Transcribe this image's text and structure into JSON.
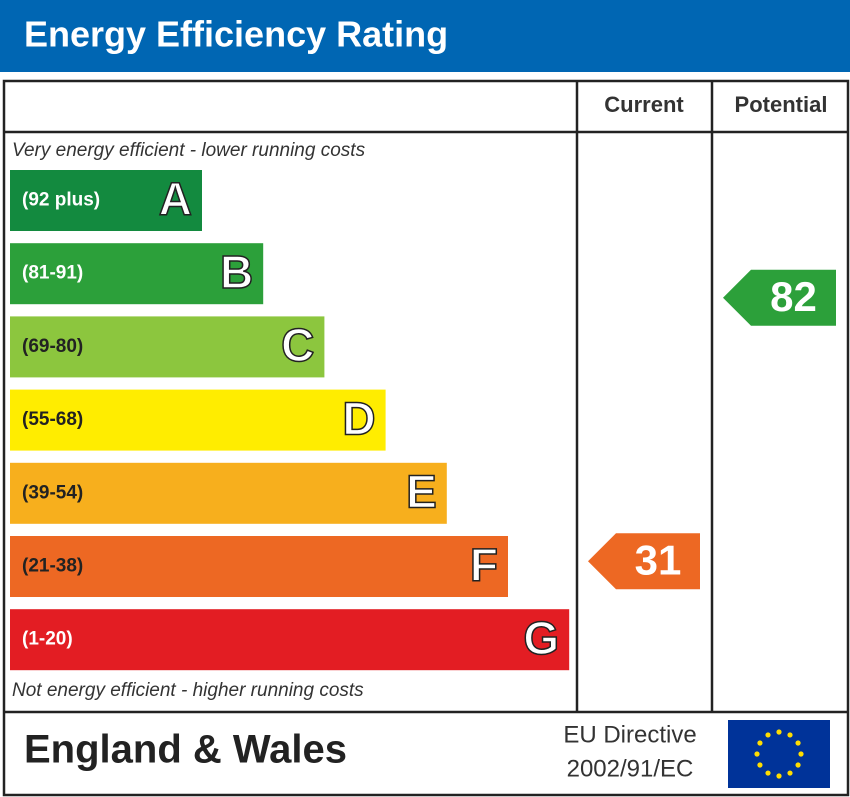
{
  "header": {
    "title": "Energy Efficiency Rating"
  },
  "columns": {
    "current": "Current",
    "potential": "Potential"
  },
  "top_note": "Very energy efficient - lower running costs",
  "bottom_note": "Not energy efficient - higher running costs",
  "bands": [
    {
      "range": "(92 plus)",
      "letter": "A",
      "color": "#138a3f"
    },
    {
      "range": "(81-91)",
      "letter": "B",
      "color": "#2ca03a"
    },
    {
      "range": "(69-80)",
      "letter": "C",
      "color": "#8cc63e"
    },
    {
      "range": "(55-68)",
      "letter": "D",
      "color": "#ffed00"
    },
    {
      "range": "(39-54)",
      "letter": "E",
      "color": "#f7af1d"
    },
    {
      "range": "(21-38)",
      "letter": "F",
      "color": "#ed6823"
    },
    {
      "range": "(1-20)",
      "letter": "G",
      "color": "#e31d23"
    }
  ],
  "current": {
    "value": 31,
    "color": "#ed6823"
  },
  "potential": {
    "value": 82,
    "color": "#2ca03a"
  },
  "footer": {
    "region": "England & Wales",
    "directive_line1": "EU Directive",
    "directive_line2": "2002/91/EC"
  }
}
